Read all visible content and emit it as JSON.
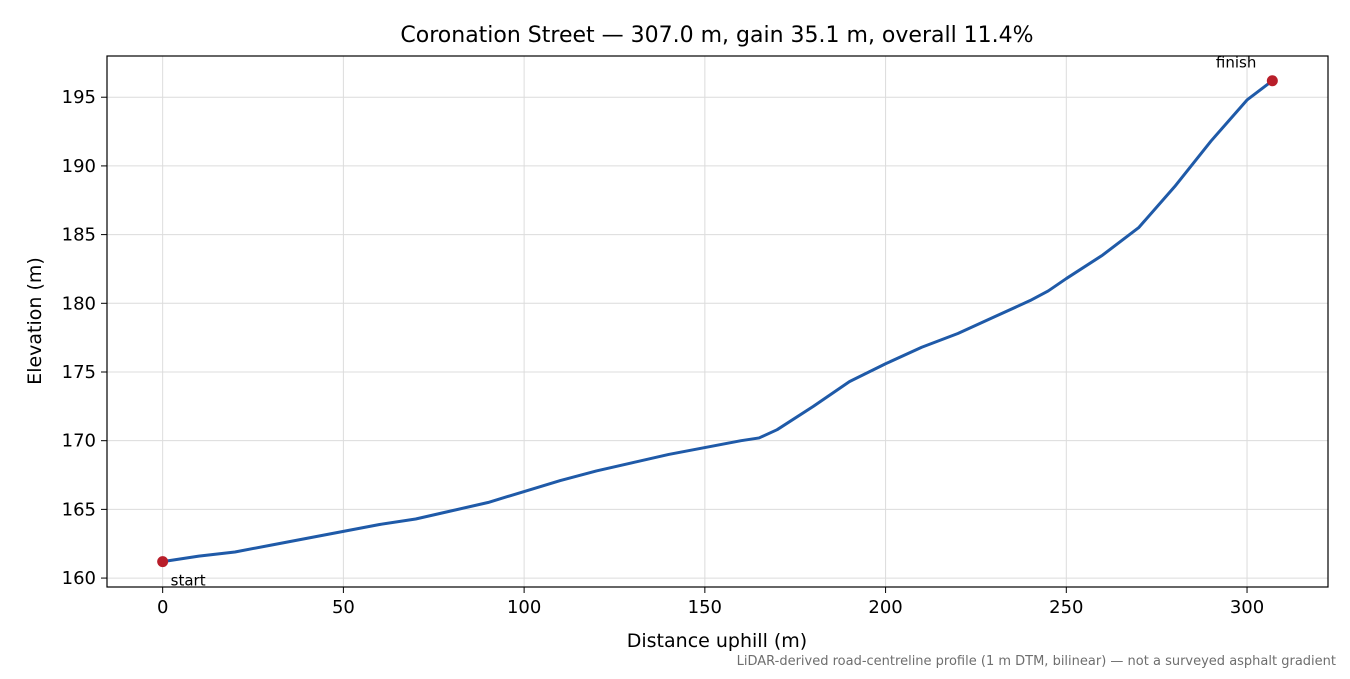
{
  "chart_data": {
    "type": "line",
    "title": "Coronation Street — 307.0 m, gain 35.1 m, overall 11.4%",
    "xlabel": "Distance uphill (m)",
    "ylabel": "Elevation (m)",
    "xlim": [
      -15.4,
      322.4
    ],
    "ylim": [
      159.35,
      198.0
    ],
    "x_ticks": [
      0,
      50,
      100,
      150,
      200,
      250,
      300
    ],
    "y_ticks": [
      160,
      165,
      170,
      175,
      180,
      185,
      190,
      195
    ],
    "grid": true,
    "legend": "none",
    "series": [
      {
        "color": "#1f5aa8",
        "x": [
          0,
          10,
          20,
          30,
          40,
          50,
          60,
          70,
          80,
          90,
          100,
          110,
          120,
          130,
          140,
          150,
          160,
          165,
          170,
          180,
          190,
          200,
          210,
          220,
          230,
          240,
          245,
          250,
          260,
          270,
          280,
          290,
          300,
          307
        ],
        "y": [
          161.2,
          161.6,
          161.9,
          162.4,
          162.9,
          163.4,
          163.9,
          164.3,
          164.9,
          165.5,
          166.3,
          167.1,
          167.8,
          168.4,
          169.0,
          169.5,
          170.0,
          170.2,
          170.8,
          172.5,
          174.3,
          175.6,
          176.8,
          177.8,
          179.0,
          180.2,
          180.9,
          181.8,
          183.5,
          185.5,
          188.5,
          191.8,
          194.8,
          196.2
        ]
      }
    ],
    "markers": [
      {
        "x": 0,
        "y": 161.2,
        "label": "start",
        "color": "#b81e2a"
      },
      {
        "x": 307,
        "y": 196.2,
        "label": "finish",
        "color": "#b81e2a"
      }
    ]
  },
  "footnote": "LiDAR-derived road-centreline profile (1 m DTM, bilinear) — not a surveyed asphalt gradient"
}
